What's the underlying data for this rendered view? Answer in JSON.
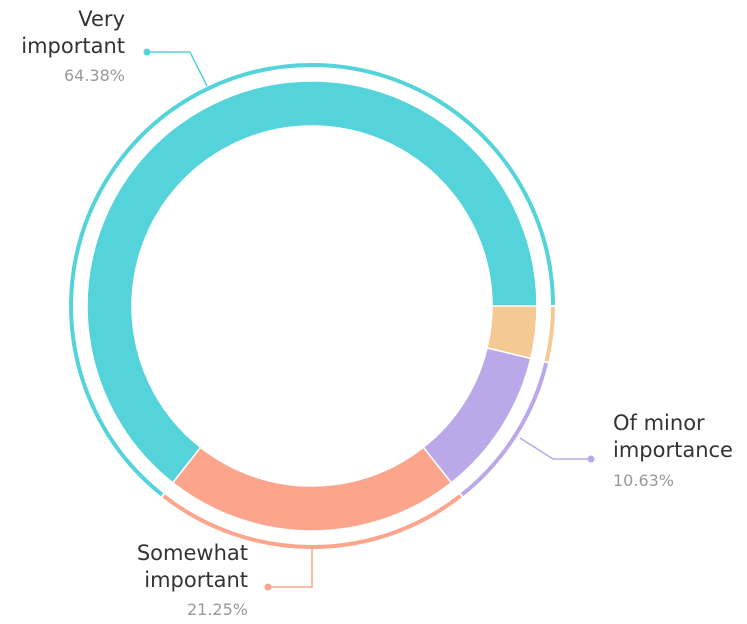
{
  "chart_data": {
    "type": "donut",
    "categories": [
      null,
      "Of minor importance",
      "Somewhat important",
      "Very important"
    ],
    "values": [
      3.74,
      10.63,
      21.25,
      64.38
    ],
    "value_labels": [
      null,
      "10.63%",
      "21.25%",
      "64.38%"
    ],
    "colors": [
      "#f5c993",
      "#bba8e8",
      "#fda58c",
      "#54d3da"
    ]
  }
}
